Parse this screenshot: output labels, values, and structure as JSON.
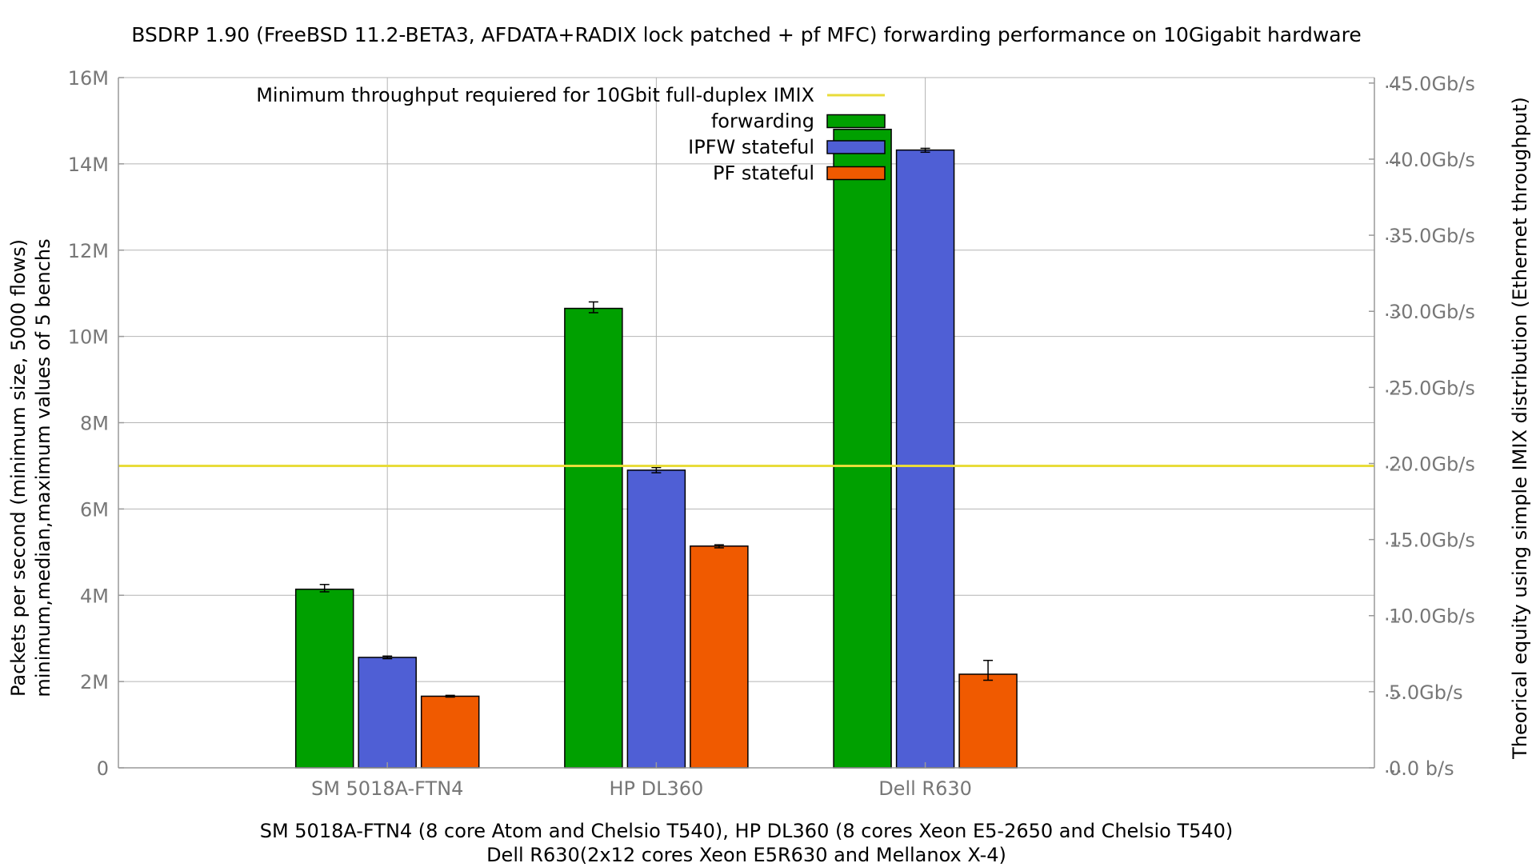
{
  "chart_data": {
    "type": "bar",
    "title": "BSDRP 1.90 (FreeBSD 11.2-BETA3, AFDATA+RADIX lock patched + pf MFC) forwarding performance on 10Gigabit hardware",
    "xlabel_lines": [
      "SM 5018A-FTN4 (8 core Atom and Chelsio T540), HP DL360 (8 cores Xeon E5-2650 and Chelsio T540)",
      "Dell R630(2x12 cores Xeon E5R630 and Mellanox X-4)"
    ],
    "ylabel_lines": [
      "Packets per second (minimum size, 5000 flows)",
      "minimum,median,maximum values of 5 benchs"
    ],
    "y2label": "Theorical equity using simple IMIX distribution (Ethernet throughput)",
    "ylim": [
      0,
      16000000
    ],
    "yticks": [
      {
        "value": 0,
        "label": "0"
      },
      {
        "value": 2000000,
        "label": "2M"
      },
      {
        "value": 4000000,
        "label": "4M"
      },
      {
        "value": 6000000,
        "label": "6M"
      },
      {
        "value": 8000000,
        "label": "8M"
      },
      {
        "value": 10000000,
        "label": "10M"
      },
      {
        "value": 12000000,
        "label": "12M"
      },
      {
        "value": 14000000,
        "label": "14M"
      },
      {
        "value": 16000000,
        "label": "16M"
      }
    ],
    "y2lim": [
      0,
      45.36
    ],
    "y2ticks": [
      {
        "value": 0,
        "label": "0.0 b/s"
      },
      {
        "value": 5,
        "label": "5.0Gb/s"
      },
      {
        "value": 10,
        "label": "10.0Gb/s"
      },
      {
        "value": 15,
        "label": "15.0Gb/s"
      },
      {
        "value": 20,
        "label": "20.0Gb/s"
      },
      {
        "value": 25,
        "label": "25.0Gb/s"
      },
      {
        "value": 30,
        "label": "30.0Gb/s"
      },
      {
        "value": 35,
        "label": "35.0Gb/s"
      },
      {
        "value": 40,
        "label": "40.0Gb/s"
      },
      {
        "value": 45,
        "label": "45.0Gb/s"
      }
    ],
    "categories": [
      "SM 5018A-FTN4",
      "HP DL360",
      "Dell R630"
    ],
    "series": [
      {
        "name": "forwarding",
        "color": "#00a000",
        "values": [
          4140000,
          10650000,
          14800000
        ],
        "min": [
          4080000,
          10550000,
          14800000
        ],
        "max": [
          4250000,
          10800000,
          14800000
        ]
      },
      {
        "name": "IPFW stateful",
        "color": "#4f5fd5",
        "values": [
          2560000,
          6900000,
          14320000
        ],
        "min": [
          2530000,
          6840000,
          14270000
        ],
        "max": [
          2590000,
          6960000,
          14360000
        ]
      },
      {
        "name": "PF stateful",
        "color": "#f05a00",
        "values": [
          1660000,
          5140000,
          2170000
        ],
        "min": [
          1640000,
          5100000,
          2030000
        ],
        "max": [
          1680000,
          5170000,
          2490000
        ]
      }
    ],
    "reference_line": {
      "name": "Minimum throughput requiered for 10Gbit full-duplex IMIX",
      "value": 7000000,
      "color": "#e8dc3a"
    },
    "legend_position": "top-center",
    "grid": true
  }
}
